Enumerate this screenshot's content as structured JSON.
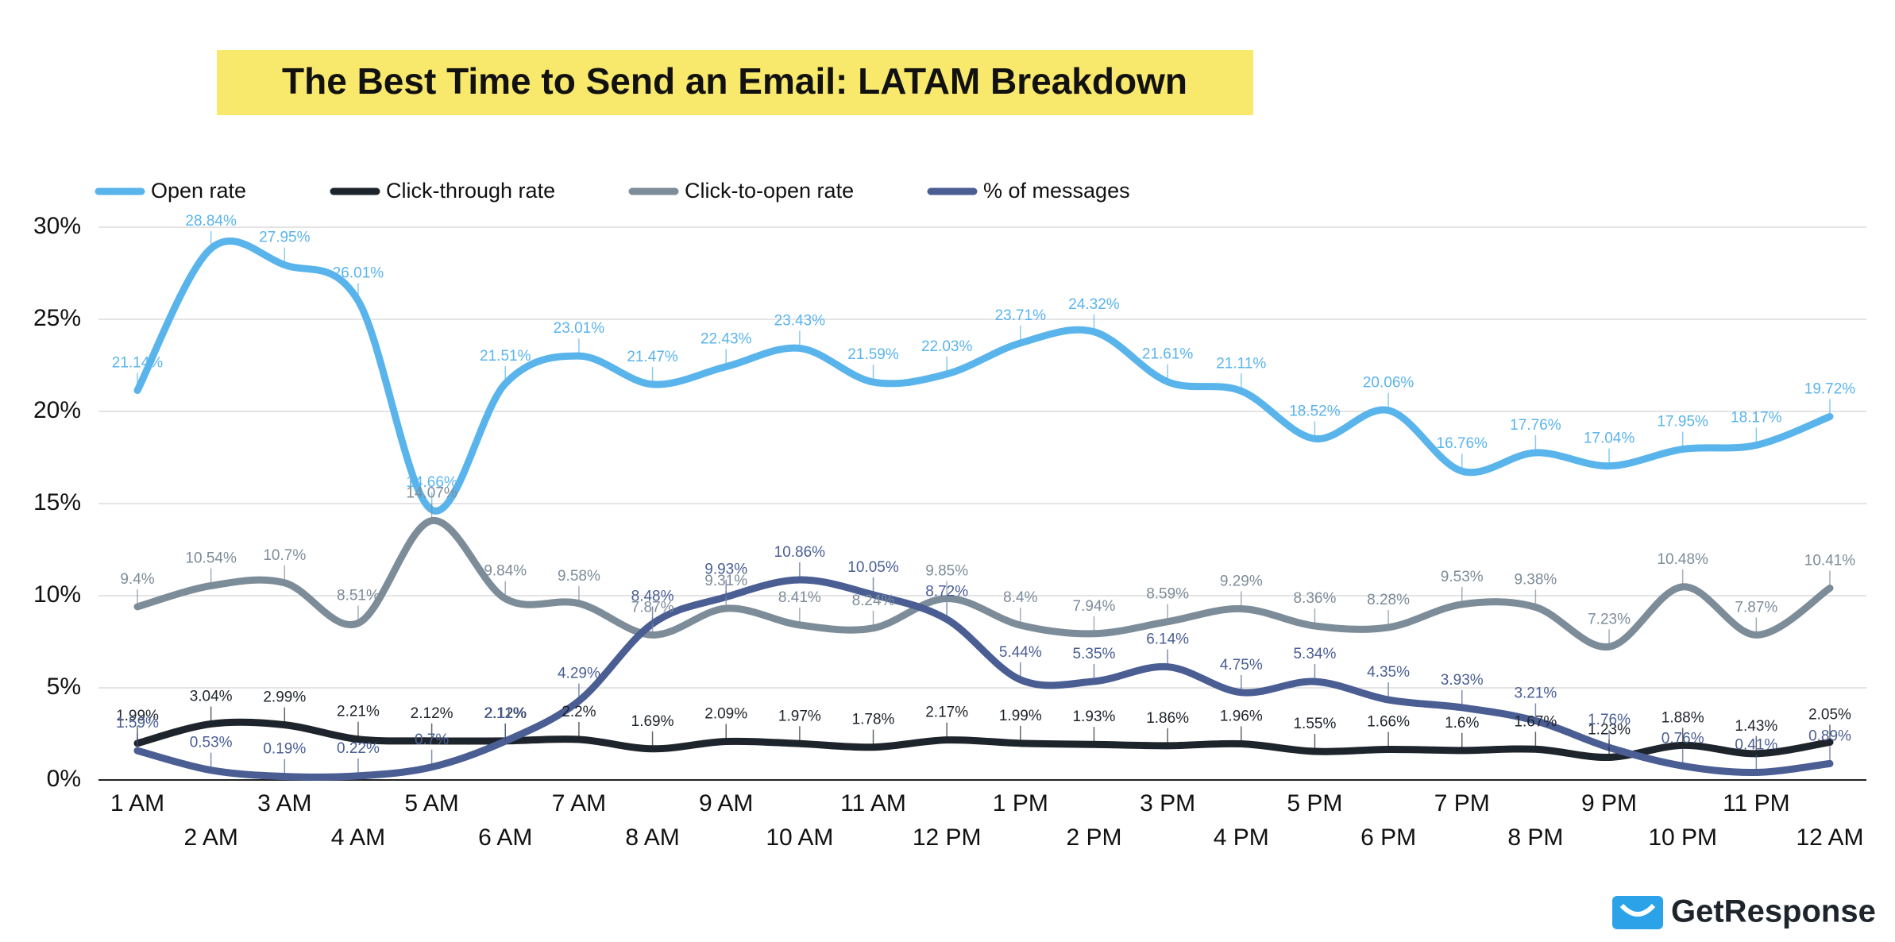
{
  "chart_data": {
    "type": "line",
    "title": "The Best Time to Send an Email: LATAM Breakdown",
    "categories": [
      "1 AM",
      "2 AM",
      "3 AM",
      "4 AM",
      "5 AM",
      "6 AM",
      "7 AM",
      "8 AM",
      "9 AM",
      "10 AM",
      "11 AM",
      "12 PM",
      "1 PM",
      "2 PM",
      "3 PM",
      "4 PM",
      "5 PM",
      "6 PM",
      "7 PM",
      "8 PM",
      "9 PM",
      "10 PM",
      "11 PM",
      "12 AM"
    ],
    "ylim": [
      0,
      30
    ],
    "yticks": [
      {
        "value": 0,
        "label": "0%"
      },
      {
        "value": 5,
        "label": "5%"
      },
      {
        "value": 10,
        "label": "10%"
      },
      {
        "value": 15,
        "label": "15%"
      },
      {
        "value": 20,
        "label": "20%"
      },
      {
        "value": 25,
        "label": "25%"
      },
      {
        "value": 30,
        "label": "30%"
      }
    ],
    "grid": true,
    "legend": "top-left",
    "smooth": true,
    "series": [
      {
        "name": "Open rate",
        "color": "#5ab4ec",
        "label_color": "#5ab4ec",
        "values": [
          21.14,
          28.84,
          27.95,
          26.01,
          14.66,
          21.51,
          23.01,
          21.47,
          22.43,
          23.43,
          21.59,
          22.03,
          23.71,
          24.32,
          21.61,
          21.11,
          18.52,
          20.06,
          16.76,
          17.76,
          17.04,
          17.95,
          18.17,
          19.72
        ],
        "value_labels": [
          "21.14%",
          "28.84%",
          "27.95%",
          "26.01%",
          "14.66%",
          "21.51%",
          "23.01%",
          "21.47%",
          "22.43%",
          "23.43%",
          "21.59%",
          "22.03%",
          "23.71%",
          "24.32%",
          "21.61%",
          "21.11%",
          "18.52%",
          "20.06%",
          "16.76%",
          "17.76%",
          "17.04%",
          "17.95%",
          "18.17%",
          "19.72%"
        ]
      },
      {
        "name": "Click-through rate",
        "color": "#1e242b",
        "label_color": "#1e242b",
        "values": [
          1.99,
          3.04,
          2.99,
          2.21,
          2.12,
          2.12,
          2.2,
          1.69,
          2.09,
          1.97,
          1.78,
          2.17,
          1.99,
          1.93,
          1.86,
          1.96,
          1.55,
          1.66,
          1.6,
          1.67,
          1.23,
          1.88,
          1.43,
          2.05
        ],
        "value_labels": [
          "1.99%",
          "3.04%",
          "2.99%",
          "2.21%",
          "2.12%",
          "2.12%",
          "2.2%",
          "1.69%",
          "2.09%",
          "1.97%",
          "1.78%",
          "2.17%",
          "1.99%",
          "1.93%",
          "1.86%",
          "1.96%",
          "1.55%",
          "1.66%",
          "1.6%",
          "1.67%",
          "1.23%",
          "1.88%",
          "1.43%",
          "2.05%"
        ]
      },
      {
        "name": "Click-to-open rate",
        "color": "#7d8c99",
        "label_color": "#7d8c99",
        "values": [
          9.4,
          10.54,
          10.7,
          8.51,
          14.07,
          9.84,
          9.58,
          7.87,
          9.31,
          8.41,
          8.24,
          9.85,
          8.4,
          7.94,
          8.59,
          9.29,
          8.36,
          8.28,
          9.53,
          9.38,
          7.23,
          10.48,
          7.87,
          10.41
        ],
        "value_labels": [
          "9.4%",
          "10.54%",
          "10.7%",
          "8.51%",
          "14.07%",
          "9.84%",
          "9.58%",
          "7.87%",
          "9.31%",
          "8.41%",
          "8.24%",
          "9.85%",
          "8.4%",
          "7.94%",
          "8.59%",
          "9.29%",
          "8.36%",
          "8.28%",
          "9.53%",
          "9.38%",
          "7.23%",
          "10.48%",
          "7.87%",
          "10.41%"
        ]
      },
      {
        "name": "% of messages",
        "color": "#4a5e94",
        "label_color": "#4a5e94",
        "values": [
          1.59,
          0.53,
          0.19,
          0.22,
          0.7,
          2.11,
          4.29,
          8.48,
          9.93,
          10.86,
          10.05,
          8.72,
          5.44,
          5.35,
          6.14,
          4.75,
          5.34,
          4.35,
          3.93,
          3.21,
          1.76,
          0.76,
          0.41,
          0.89
        ],
        "value_labels": [
          "1.59%",
          "0.53%",
          "0.19%",
          "0.22%",
          "0.7%",
          "2.11%",
          "4.29%",
          "8.48%",
          "9.93%",
          "10.86%",
          "10.05%",
          "8.72%",
          "5.44%",
          "5.35%",
          "6.14%",
          "4.75%",
          "5.34%",
          "4.35%",
          "3.93%",
          "3.21%",
          "1.76%",
          "0.76%",
          "0.41%",
          "0.89%"
        ]
      }
    ]
  },
  "logo_text": "GetResponse"
}
